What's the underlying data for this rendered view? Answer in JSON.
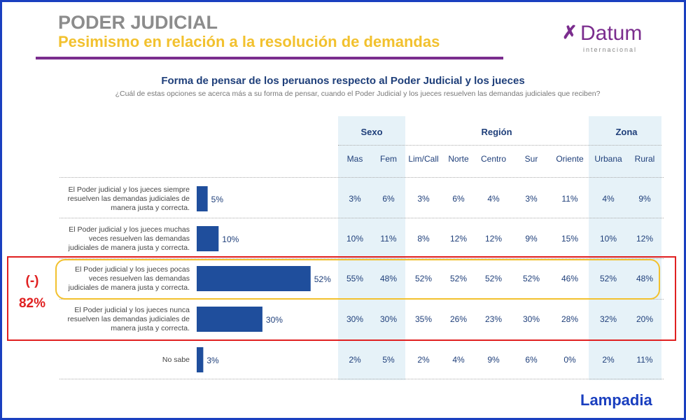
{
  "header": {
    "title": "PODER JUDICIAL",
    "subtitle": "Pesimismo en relación a la resolución de demandas",
    "logo": "Datum",
    "logo_sub": "internacional"
  },
  "chart_data": {
    "type": "bar",
    "orientation": "horizontal",
    "title": "Forma de pensar de los peruanos respecto al Poder Judicial y los jueces",
    "subtitle": "¿Cuál de estas opciones se acerca más a su forma de pensar, cuando el Poder Judicial y los jueces resuelven las demandas judiciales que reciben?",
    "categories": [
      "El Poder judicial y los jueces siempre resuelven las demandas judiciales de manera justa y correcta.",
      "El Poder judicial y los jueces muchas veces resuelven las demandas judiciales de manera justa y correcta.",
      "El Poder judicial y los jueces pocas veces resuelven las demandas judiciales de manera justa y correcta.",
      "El Poder judicial y los jueces nunca resuelven las demandas judiciales de manera justa y correcta.",
      "No sabe"
    ],
    "values": [
      5,
      10,
      52,
      30,
      3
    ],
    "value_labels": [
      "5%",
      "10%",
      "52%",
      "30%",
      "3%"
    ],
    "color": "#1f4e9c",
    "annotations": [
      "(-)",
      "82%"
    ]
  },
  "table": {
    "groups": [
      {
        "label": "Sexo",
        "columns": [
          "Mas",
          "Fem"
        ]
      },
      {
        "label": "Región",
        "columns": [
          "Lim/Call",
          "Norte",
          "Centro",
          "Sur",
          "Oriente"
        ]
      },
      {
        "label": "Zona",
        "columns": [
          "Urbana",
          "Rural"
        ]
      }
    ],
    "rows": [
      [
        "3%",
        "6%",
        "3%",
        "6%",
        "4%",
        "3%",
        "11%",
        "4%",
        "9%"
      ],
      [
        "10%",
        "11%",
        "8%",
        "12%",
        "12%",
        "9%",
        "15%",
        "10%",
        "12%"
      ],
      [
        "55%",
        "48%",
        "52%",
        "52%",
        "52%",
        "52%",
        "46%",
        "52%",
        "48%"
      ],
      [
        "30%",
        "30%",
        "35%",
        "26%",
        "23%",
        "30%",
        "28%",
        "32%",
        "20%"
      ],
      [
        "2%",
        "5%",
        "2%",
        "4%",
        "9%",
        "6%",
        "0%",
        "2%",
        "11%"
      ]
    ]
  },
  "footer": {
    "source": "Lampadia"
  }
}
